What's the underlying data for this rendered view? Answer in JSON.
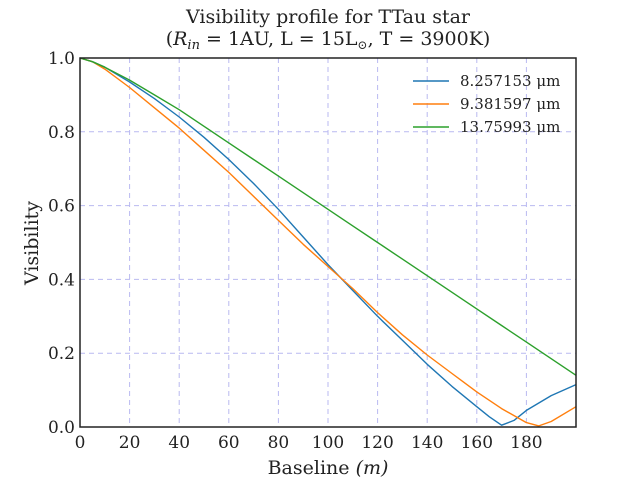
{
  "chart_data": {
    "type": "line",
    "title_line1": "Visibility profile for TTau star",
    "title_line2": "(R_in = 1AU, L = 15L_sun, T = 3900K)",
    "title_line2_parts": {
      "open": "(",
      "r": "R",
      "in": "in",
      "r_eq": " = 1AU, L = 15L",
      "sun": "⊙",
      "rest": ", T = 3900K)"
    },
    "xlabel": "Baseline",
    "xlabel_unit": "(m)",
    "ylabel": "Visibility",
    "xlim": [
      0,
      200
    ],
    "ylim": [
      0,
      1.0
    ],
    "xticks": [
      "0",
      "20",
      "40",
      "60",
      "80",
      "100",
      "120",
      "140",
      "160",
      "180"
    ],
    "yticks": [
      "0.0",
      "0.2",
      "0.4",
      "0.6",
      "0.8",
      "1.0"
    ],
    "grid": true,
    "legend_position": "top-right",
    "series": [
      {
        "name": "8.257153 μm",
        "color": "#1f77b4",
        "x": [
          0,
          5,
          10,
          20,
          30,
          40,
          50,
          60,
          70,
          80,
          90,
          100,
          110,
          120,
          130,
          140,
          150,
          160,
          165,
          170,
          175,
          180,
          190,
          200
        ],
        "y": [
          1.0,
          0.99,
          0.975,
          0.935,
          0.89,
          0.84,
          0.785,
          0.725,
          0.66,
          0.59,
          0.515,
          0.44,
          0.37,
          0.3,
          0.235,
          0.17,
          0.11,
          0.055,
          0.028,
          0.005,
          0.018,
          0.045,
          0.085,
          0.115
        ]
      },
      {
        "name": "9.381597 μm",
        "color": "#ff7f0e",
        "x": [
          0,
          5,
          10,
          20,
          30,
          40,
          50,
          60,
          70,
          80,
          90,
          100,
          110,
          120,
          130,
          140,
          150,
          160,
          170,
          180,
          185,
          190,
          200
        ],
        "y": [
          1.0,
          0.99,
          0.97,
          0.92,
          0.865,
          0.81,
          0.75,
          0.69,
          0.625,
          0.56,
          0.495,
          0.435,
          0.375,
          0.31,
          0.25,
          0.195,
          0.145,
          0.095,
          0.05,
          0.012,
          0.003,
          0.015,
          0.055
        ]
      },
      {
        "name": "13.75993 μm",
        "color": "#2ca02c",
        "x": [
          0,
          5,
          10,
          20,
          30,
          40,
          50,
          60,
          70,
          80,
          90,
          100,
          110,
          120,
          130,
          140,
          150,
          160,
          170,
          180,
          190,
          200
        ],
        "y": [
          1.0,
          0.99,
          0.975,
          0.94,
          0.9,
          0.86,
          0.815,
          0.77,
          0.725,
          0.68,
          0.635,
          0.59,
          0.545,
          0.5,
          0.455,
          0.41,
          0.365,
          0.32,
          0.275,
          0.23,
          0.185,
          0.14
        ]
      }
    ]
  }
}
